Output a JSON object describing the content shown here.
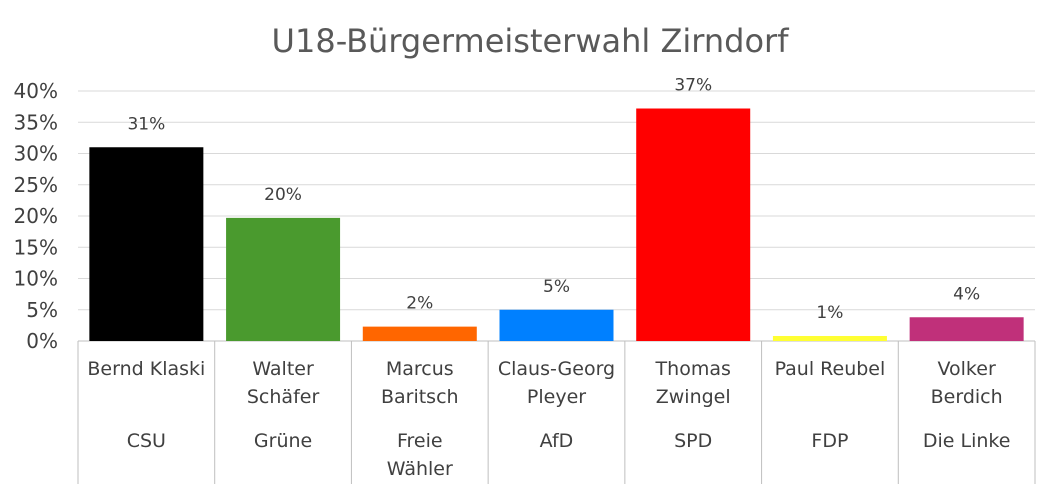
{
  "chart_data": {
    "type": "bar",
    "title": "U18-Bürgermeisterwahl Zirndorf",
    "candidates": [
      {
        "name_line1": "Bernd Klaski",
        "name_line2": "",
        "party_line1": "CSU",
        "party_line2": "",
        "value": 31,
        "label": "31%",
        "color": "#000000"
      },
      {
        "name_line1": "Walter",
        "name_line2": "Schäfer",
        "party_line1": "Grüne",
        "party_line2": "",
        "value": 19.7,
        "label": "20%",
        "color": "#4a9a2e"
      },
      {
        "name_line1": "Marcus",
        "name_line2": "Baritsch",
        "party_line1": "Freie",
        "party_line2": "Wähler",
        "value": 2.3,
        "label": "2%",
        "color": "#ff6600"
      },
      {
        "name_line1": "Claus-Georg",
        "name_line2": "Pleyer",
        "party_line1": "AfD",
        "party_line2": "",
        "value": 5,
        "label": "5%",
        "color": "#0080ff"
      },
      {
        "name_line1": "Thomas",
        "name_line2": "Zwingel",
        "party_line1": "SPD",
        "party_line2": "",
        "value": 37.2,
        "label": "37%",
        "color": "#ff0000"
      },
      {
        "name_line1": "Paul Reubel",
        "name_line2": "",
        "party_line1": "FDP",
        "party_line2": "",
        "value": 0.8,
        "label": "1%",
        "color": "#ffff33"
      },
      {
        "name_line1": "Volker",
        "name_line2": "Berdich",
        "party_line1": "Die Linke",
        "party_line2": "",
        "value": 3.8,
        "label": "4%",
        "color": "#c0307a"
      }
    ],
    "yticks": [
      "0%",
      "5%",
      "10%",
      "15%",
      "20%",
      "25%",
      "30%",
      "35%",
      "40%"
    ],
    "ylim": [
      0,
      40
    ],
    "grid": true,
    "legend": "none"
  }
}
